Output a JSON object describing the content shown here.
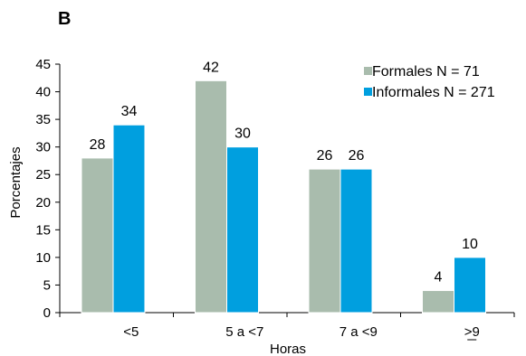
{
  "panel_label": "B",
  "chart_data": {
    "type": "bar",
    "categories": [
      "<5",
      "5 a <7",
      "7 a <9",
      ">9"
    ],
    "series": [
      {
        "name": "Formales N = 71",
        "values": [
          28,
          42,
          26,
          4
        ],
        "color": "#a9bcad"
      },
      {
        "name": "Informales N = 271",
        "values": [
          34,
          30,
          26,
          10
        ],
        "color": "#009fdf"
      }
    ],
    "xlabel": "Horas",
    "ylabel": "Porcentajes",
    "ylim": [
      0,
      45
    ],
    "yticks": [
      0,
      5,
      10,
      15,
      20,
      25,
      30,
      35,
      40,
      45
    ],
    "grid": false,
    "legend_position": "top-right"
  }
}
